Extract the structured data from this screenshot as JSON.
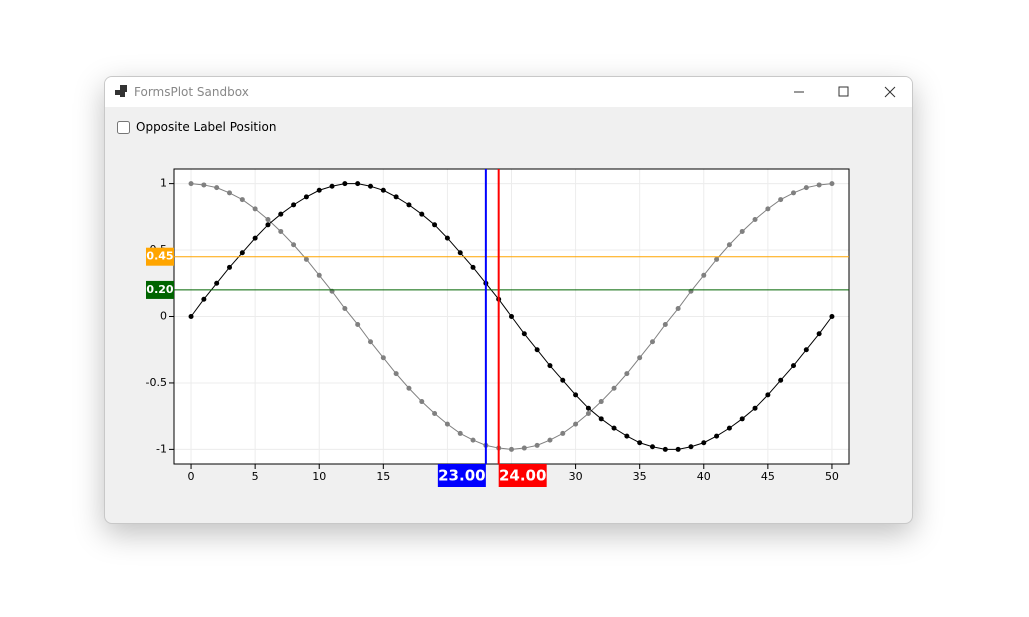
{
  "window": {
    "title": "FormsPlot Sandbox"
  },
  "checkbox": {
    "label": "Opposite Label Position",
    "checked": false
  },
  "chart_data": {
    "type": "scatter",
    "x": [
      0,
      1,
      2,
      3,
      4,
      5,
      6,
      7,
      8,
      9,
      10,
      11,
      12,
      13,
      14,
      15,
      16,
      17,
      18,
      19,
      20,
      21,
      22,
      23,
      24,
      25,
      26,
      27,
      28,
      29,
      30,
      31,
      32,
      33,
      34,
      35,
      36,
      37,
      38,
      39,
      40,
      41,
      42,
      43,
      44,
      45,
      46,
      47,
      48,
      49,
      50
    ],
    "series": [
      {
        "color": "#000000",
        "values": [
          0,
          0.13,
          0.25,
          0.37,
          0.48,
          0.59,
          0.69,
          0.77,
          0.84,
          0.9,
          0.95,
          0.98,
          1,
          1,
          0.98,
          0.95,
          0.9,
          0.84,
          0.77,
          0.69,
          0.59,
          0.48,
          0.37,
          0.25,
          0.13,
          0,
          -0.13,
          -0.25,
          -0.37,
          -0.48,
          -0.59,
          -0.69,
          -0.77,
          -0.84,
          -0.9,
          -0.95,
          -0.98,
          -1,
          -1,
          -0.98,
          -0.95,
          -0.9,
          -0.84,
          -0.77,
          -0.69,
          -0.59,
          -0.48,
          -0.37,
          -0.25,
          -0.13,
          0
        ]
      },
      {
        "color": "#808080",
        "values": [
          1,
          0.99,
          0.97,
          0.93,
          0.88,
          0.81,
          0.73,
          0.64,
          0.54,
          0.43,
          0.31,
          0.19,
          0.06,
          -0.06,
          -0.19,
          -0.31,
          -0.43,
          -0.54,
          -0.64,
          -0.73,
          -0.81,
          -0.88,
          -0.93,
          -0.97,
          -0.99,
          -1,
          -0.99,
          -0.97,
          -0.93,
          -0.88,
          -0.81,
          -0.73,
          -0.64,
          -0.54,
          -0.43,
          -0.31,
          -0.19,
          -0.06,
          0.06,
          0.19,
          0.31,
          0.43,
          0.54,
          0.64,
          0.73,
          0.81,
          0.88,
          0.93,
          0.97,
          0.99,
          1
        ]
      }
    ],
    "xlim": [
      -1.33,
      51.33
    ],
    "ylim": [
      -1.11,
      1.11
    ],
    "xticks": [
      0,
      5,
      10,
      15,
      20,
      25,
      30,
      35,
      40,
      45,
      50
    ],
    "yticks": [
      -1,
      -0.5,
      0,
      0.5,
      1
    ],
    "grid": true,
    "hlines": [
      {
        "value": 0.45,
        "label": "0.45",
        "color": "#ffa500"
      },
      {
        "value": 0.2,
        "label": "0.20",
        "color": "#006400"
      }
    ],
    "vlines": [
      {
        "value": 23,
        "label": "23.00",
        "color": "#0000ff"
      },
      {
        "value": 24,
        "label": "24.00",
        "color": "#ff0000"
      }
    ]
  }
}
